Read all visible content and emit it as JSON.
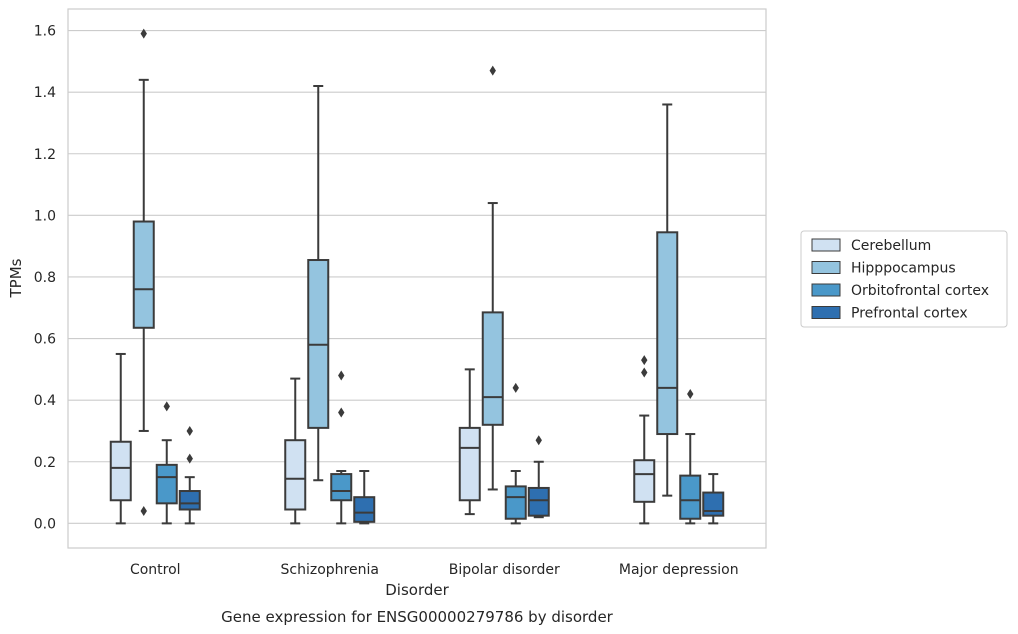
{
  "chart_data": {
    "type": "box",
    "title": "",
    "caption": "Gene expression for ENSG00000279786 by disorder",
    "xlabel": "Disorder",
    "ylabel": "TPMs",
    "ylim": [
      -0.08,
      1.67
    ],
    "yticks": [
      0.0,
      0.2,
      0.4,
      0.6,
      0.8,
      1.0,
      1.2,
      1.4,
      1.6
    ],
    "yticks_labels": [
      "0.0",
      "0.2",
      "0.4",
      "0.6",
      "0.8",
      "1.0",
      "1.2",
      "1.4",
      "1.6"
    ],
    "grid": "horizontal",
    "legend_position": "right",
    "categories": [
      "Control",
      "Schizophrenia",
      "Bipolar disorder",
      "Major depression"
    ],
    "series": [
      {
        "name": "Cerebellum",
        "color": "#d0e1f2",
        "boxes": [
          {
            "whisker_low": 0.0,
            "q1": 0.075,
            "median": 0.18,
            "q3": 0.265,
            "whisker_high": 0.55,
            "outliers": []
          },
          {
            "whisker_low": 0.0,
            "q1": 0.045,
            "median": 0.145,
            "q3": 0.27,
            "whisker_high": 0.47,
            "outliers": []
          },
          {
            "whisker_low": 0.03,
            "q1": 0.075,
            "median": 0.245,
            "q3": 0.31,
            "whisker_high": 0.5,
            "outliers": []
          },
          {
            "whisker_low": 0.0,
            "q1": 0.07,
            "median": 0.16,
            "q3": 0.205,
            "whisker_high": 0.35,
            "outliers": [
              0.49,
              0.53
            ]
          }
        ]
      },
      {
        "name": "Hipppocampus",
        "color": "#94c4df",
        "boxes": [
          {
            "whisker_low": 0.3,
            "q1": 0.635,
            "median": 0.76,
            "q3": 0.98,
            "whisker_high": 1.44,
            "outliers": [
              1.59,
              0.04
            ]
          },
          {
            "whisker_low": 0.14,
            "q1": 0.31,
            "median": 0.58,
            "q3": 0.855,
            "whisker_high": 1.42,
            "outliers": []
          },
          {
            "whisker_low": 0.11,
            "q1": 0.32,
            "median": 0.41,
            "q3": 0.685,
            "whisker_high": 1.04,
            "outliers": [
              1.47
            ]
          },
          {
            "whisker_low": 0.09,
            "q1": 0.29,
            "median": 0.44,
            "q3": 0.945,
            "whisker_high": 1.36,
            "outliers": []
          }
        ]
      },
      {
        "name": "Orbitofrontal cortex",
        "color": "#4a98c9",
        "boxes": [
          {
            "whisker_low": 0.0,
            "q1": 0.065,
            "median": 0.15,
            "q3": 0.19,
            "whisker_high": 0.27,
            "outliers": [
              0.38
            ]
          },
          {
            "whisker_low": 0.0,
            "q1": 0.075,
            "median": 0.105,
            "q3": 0.16,
            "whisker_high": 0.17,
            "outliers": [
              0.36,
              0.48
            ]
          },
          {
            "whisker_low": 0.0,
            "q1": 0.015,
            "median": 0.085,
            "q3": 0.12,
            "whisker_high": 0.17,
            "outliers": [
              0.44
            ]
          },
          {
            "whisker_low": 0.0,
            "q1": 0.015,
            "median": 0.075,
            "q3": 0.155,
            "whisker_high": 0.29,
            "outliers": [
              0.42
            ]
          }
        ]
      },
      {
        "name": "Prefrontal cortex",
        "color": "#2e6fb0",
        "boxes": [
          {
            "whisker_low": 0.0,
            "q1": 0.045,
            "median": 0.065,
            "q3": 0.105,
            "whisker_high": 0.15,
            "outliers": [
              0.21,
              0.3
            ]
          },
          {
            "whisker_low": 0.0,
            "q1": 0.005,
            "median": 0.035,
            "q3": 0.085,
            "whisker_high": 0.17,
            "outliers": []
          },
          {
            "whisker_low": 0.02,
            "q1": 0.025,
            "median": 0.075,
            "q3": 0.115,
            "whisker_high": 0.2,
            "outliers": [
              0.27
            ]
          },
          {
            "whisker_low": 0.0,
            "q1": 0.025,
            "median": 0.04,
            "q3": 0.1,
            "whisker_high": 0.16,
            "outliers": []
          }
        ]
      }
    ]
  }
}
